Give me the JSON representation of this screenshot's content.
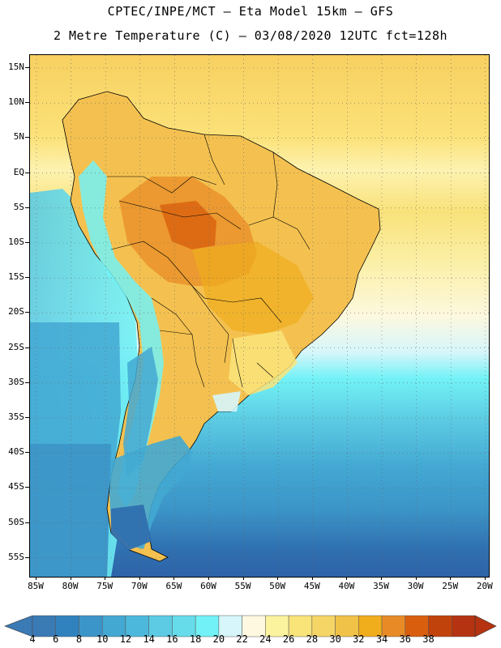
{
  "header": {
    "title_line1": "CPTEC/INPE/MCT –  Eta Model 15km – GFS",
    "title_line2": "2 Metre Temperature (C) – 03/08/2020 12UTC fct=128h"
  },
  "map": {
    "lat_labels": [
      "15N",
      "10N",
      "5N",
      "EQ",
      "5S",
      "10S",
      "15S",
      "20S",
      "25S",
      "30S",
      "35S",
      "40S",
      "45S",
      "50S",
      "55S"
    ],
    "lon_labels": [
      "85W",
      "80W",
      "75W",
      "70W",
      "65W",
      "60W",
      "55W",
      "50W",
      "45W",
      "40W",
      "35W",
      "30W",
      "25W",
      "20W"
    ],
    "grid": "dotted",
    "region": "South America"
  },
  "colorbar": {
    "labels": [
      "4",
      "6",
      "8",
      "10",
      "12",
      "14",
      "16",
      "18",
      "20",
      "22",
      "24",
      "26",
      "28",
      "30",
      "32",
      "34",
      "36",
      "38"
    ],
    "colors": [
      "#3a7ab5",
      "#2f82bd",
      "#3c95c8",
      "#43a8d2",
      "#4cb9dc",
      "#5ccbe3",
      "#66dcea",
      "#72f2f6",
      "#d6f6fb",
      "#fdf8df",
      "#fbf39e",
      "#f9e47a",
      "#f6d567",
      "#f1c248",
      "#f0ad1c",
      "#e88b26",
      "#d95f0e",
      "#c1420a",
      "#b53310"
    ],
    "under_color": "#3a7ab5",
    "over_color": "#b53310"
  }
}
